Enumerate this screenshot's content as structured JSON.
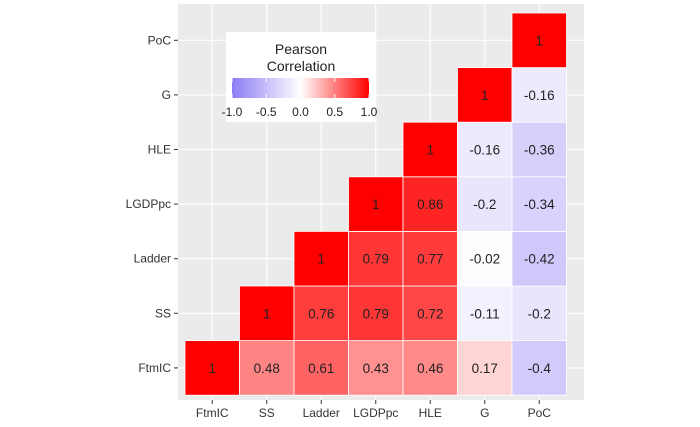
{
  "chart_data": {
    "type": "heatmap",
    "variables": [
      "FtmIC",
      "SS",
      "Ladder",
      "LGDPpc",
      "HLE",
      "G",
      "PoC"
    ],
    "x_ticks": [
      "FtmIC",
      "SS",
      "Ladder",
      "LGDPpc",
      "HLE",
      "G",
      "PoC"
    ],
    "y_ticks_top_to_bottom": [
      "PoC",
      "G",
      "HLE",
      "LGDPpc",
      "Ladder",
      "SS",
      "FtmIC"
    ],
    "cells": [
      {
        "x": "FtmIC",
        "y": "FtmIC",
        "value": 1,
        "label": "1"
      },
      {
        "x": "SS",
        "y": "FtmIC",
        "value": 0.48,
        "label": "0.48"
      },
      {
        "x": "Ladder",
        "y": "FtmIC",
        "value": 0.61,
        "label": "0.61"
      },
      {
        "x": "LGDPpc",
        "y": "FtmIC",
        "value": 0.43,
        "label": "0.43"
      },
      {
        "x": "HLE",
        "y": "FtmIC",
        "value": 0.46,
        "label": "0.46"
      },
      {
        "x": "G",
        "y": "FtmIC",
        "value": 0.17,
        "label": "0.17"
      },
      {
        "x": "PoC",
        "y": "FtmIC",
        "value": -0.4,
        "label": "-0.4"
      },
      {
        "x": "SS",
        "y": "SS",
        "value": 1,
        "label": "1"
      },
      {
        "x": "Ladder",
        "y": "SS",
        "value": 0.76,
        "label": "0.76"
      },
      {
        "x": "LGDPpc",
        "y": "SS",
        "value": 0.79,
        "label": "0.79"
      },
      {
        "x": "HLE",
        "y": "SS",
        "value": 0.72,
        "label": "0.72"
      },
      {
        "x": "G",
        "y": "SS",
        "value": -0.11,
        "label": "-0.11"
      },
      {
        "x": "PoC",
        "y": "SS",
        "value": -0.2,
        "label": "-0.2"
      },
      {
        "x": "Ladder",
        "y": "Ladder",
        "value": 1,
        "label": "1"
      },
      {
        "x": "LGDPpc",
        "y": "Ladder",
        "value": 0.79,
        "label": "0.79"
      },
      {
        "x": "HLE",
        "y": "Ladder",
        "value": 0.77,
        "label": "0.77"
      },
      {
        "x": "G",
        "y": "Ladder",
        "value": -0.02,
        "label": "-0.02"
      },
      {
        "x": "PoC",
        "y": "Ladder",
        "value": -0.42,
        "label": "-0.42"
      },
      {
        "x": "LGDPpc",
        "y": "LGDPpc",
        "value": 1,
        "label": "1"
      },
      {
        "x": "HLE",
        "y": "LGDPpc",
        "value": 0.86,
        "label": "0.86"
      },
      {
        "x": "G",
        "y": "LGDPpc",
        "value": -0.2,
        "label": "-0.2"
      },
      {
        "x": "PoC",
        "y": "LGDPpc",
        "value": -0.34,
        "label": "-0.34"
      },
      {
        "x": "HLE",
        "y": "HLE",
        "value": 1,
        "label": "1"
      },
      {
        "x": "G",
        "y": "HLE",
        "value": -0.16,
        "label": "-0.16"
      },
      {
        "x": "PoC",
        "y": "HLE",
        "value": -0.36,
        "label": "-0.36"
      },
      {
        "x": "G",
        "y": "G",
        "value": 1,
        "label": "1"
      },
      {
        "x": "PoC",
        "y": "G",
        "value": -0.16,
        "label": "-0.16"
      },
      {
        "x": "PoC",
        "y": "PoC",
        "value": 1,
        "label": "1"
      }
    ],
    "legend": {
      "title_line1": "Pearson",
      "title_line2": "Correlation",
      "ticks": [
        "-1.0",
        "-0.5",
        "0.0",
        "0.5",
        "1.0"
      ],
      "tick_values": [
        -1.0,
        -0.5,
        0.0,
        0.5,
        1.0
      ],
      "placement": "top-left"
    },
    "color_scale": {
      "low": "#8c7cf5",
      "mid": "#ffffff",
      "high": "#ff0000",
      "limits": [
        -1,
        1
      ]
    },
    "panel_background": "#ebebeb",
    "grid": true
  }
}
